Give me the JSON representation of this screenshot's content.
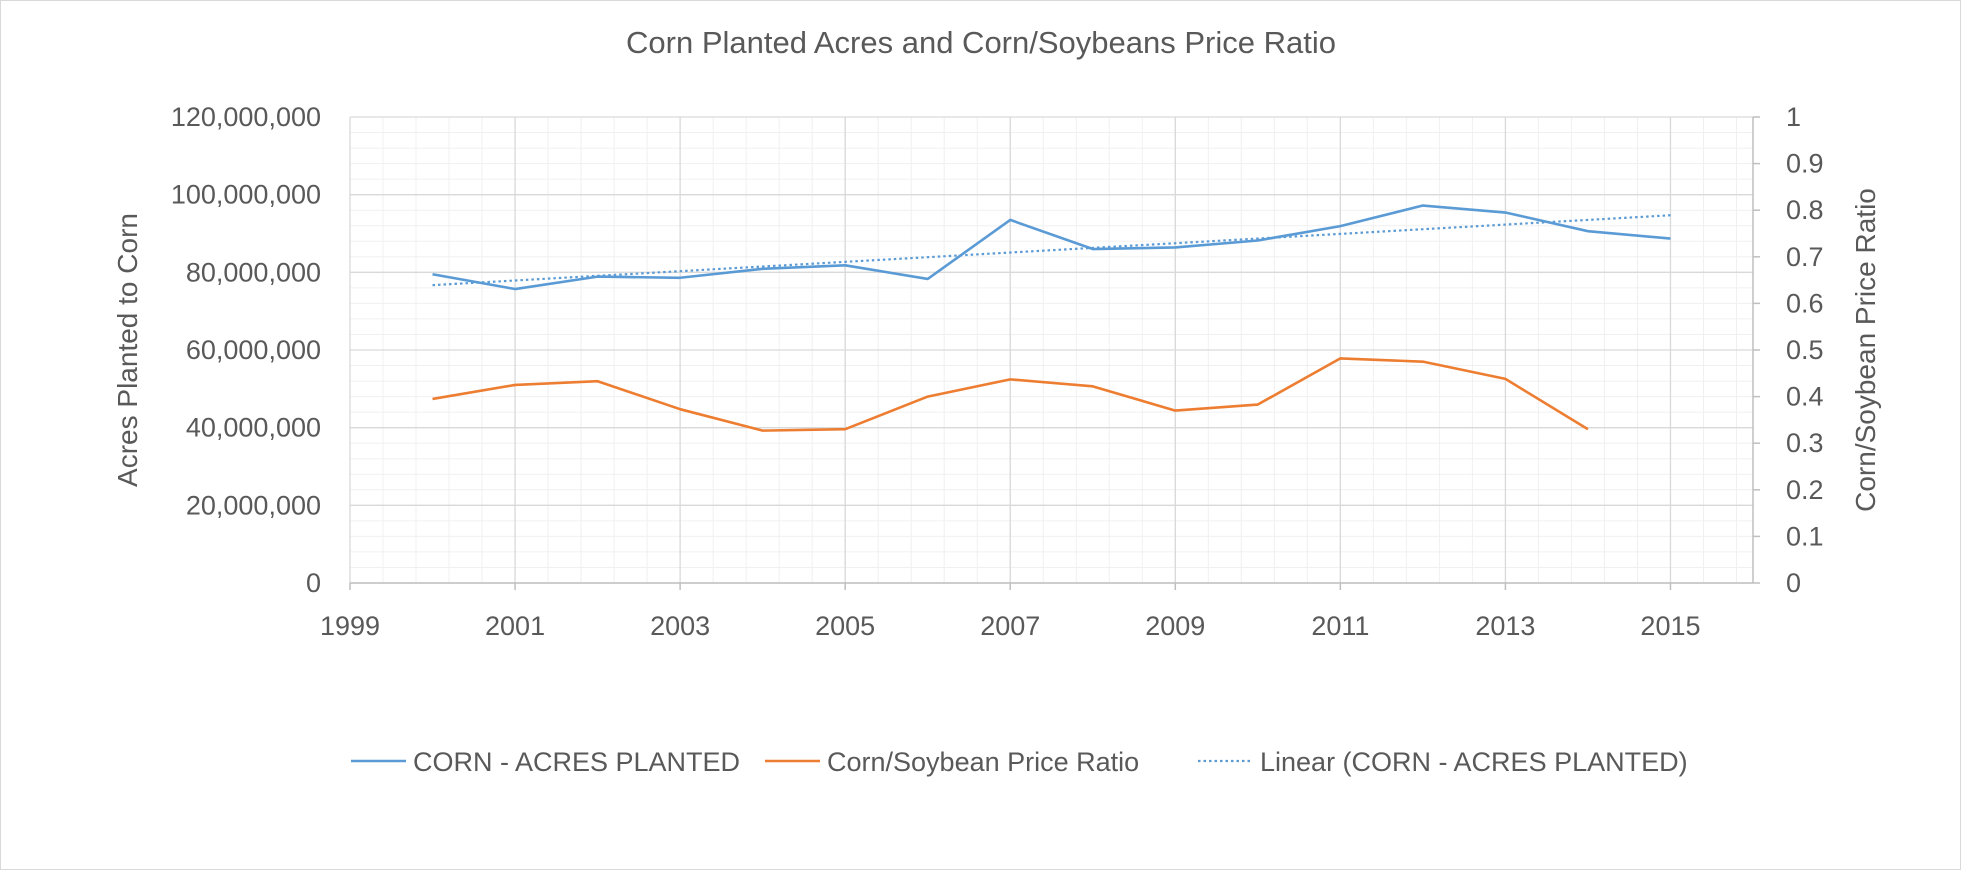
{
  "chart_data": {
    "type": "line",
    "title": "Corn Planted Acres and Corn/Soybeans Price Ratio",
    "xlabel": "",
    "ylabel": "Acres Planted to Corn",
    "y2label": "Corn/Soybean Price Ratio",
    "xlim": [
      1999,
      2016
    ],
    "ylim": [
      0,
      120000000
    ],
    "y2lim": [
      0,
      1
    ],
    "x_ticks": [
      1999,
      2001,
      2003,
      2005,
      2007,
      2009,
      2011,
      2013,
      2015
    ],
    "x_tick_labels": [
      "1999",
      "2001",
      "2003",
      "2005",
      "2007",
      "2009",
      "2011",
      "2013",
      "2015"
    ],
    "y_ticks": [
      0,
      20000000,
      40000000,
      60000000,
      80000000,
      100000000,
      120000000
    ],
    "y_tick_labels": [
      "0",
      "20,000,000",
      "40,000,000",
      "60,000,000",
      "80,000,000",
      "100,000,000",
      "120,000,000"
    ],
    "y2_ticks": [
      0,
      0.1,
      0.2,
      0.3,
      0.4,
      0.5,
      0.6,
      0.7,
      0.8,
      0.9,
      1
    ],
    "y2_tick_labels": [
      "0",
      "0.1",
      "0.2",
      "0.3",
      "0.4",
      "0.5",
      "0.6",
      "0.7",
      "0.8",
      "0.9",
      "1"
    ],
    "grid": true,
    "legend_position": "bottom",
    "series": [
      {
        "name": "CORN - ACRES PLANTED",
        "axis": "left",
        "color": "#5b9bd5",
        "style": "solid",
        "x": [
          2000,
          2001,
          2002,
          2003,
          2004,
          2005,
          2006,
          2007,
          2008,
          2009,
          2010,
          2011,
          2012,
          2013,
          2014,
          2015
        ],
        "values": [
          79500000,
          75700000,
          78900000,
          78600000,
          80900000,
          81800000,
          78300000,
          93500000,
          86000000,
          86400000,
          88200000,
          91900000,
          97200000,
          95400000,
          90600000,
          88700000
        ]
      },
      {
        "name": "Corn/Soybean Price Ratio",
        "axis": "right",
        "color": "#ed7d31",
        "style": "solid",
        "x": [
          2000,
          2001,
          2002,
          2003,
          2004,
          2005,
          2006,
          2007,
          2008,
          2009,
          2010,
          2011,
          2012,
          2013,
          2014
        ],
        "values": [
          0.395,
          0.425,
          0.433,
          0.373,
          0.327,
          0.33,
          0.4,
          0.437,
          0.422,
          0.37,
          0.383,
          0.482,
          0.475,
          0.438,
          0.33
        ]
      },
      {
        "name": "Linear (CORN - ACRES PLANTED)",
        "axis": "left",
        "color": "#5b9bd5",
        "style": "dotted",
        "x": [
          2000,
          2015
        ],
        "values": [
          76700000,
          94700000
        ]
      }
    ]
  }
}
